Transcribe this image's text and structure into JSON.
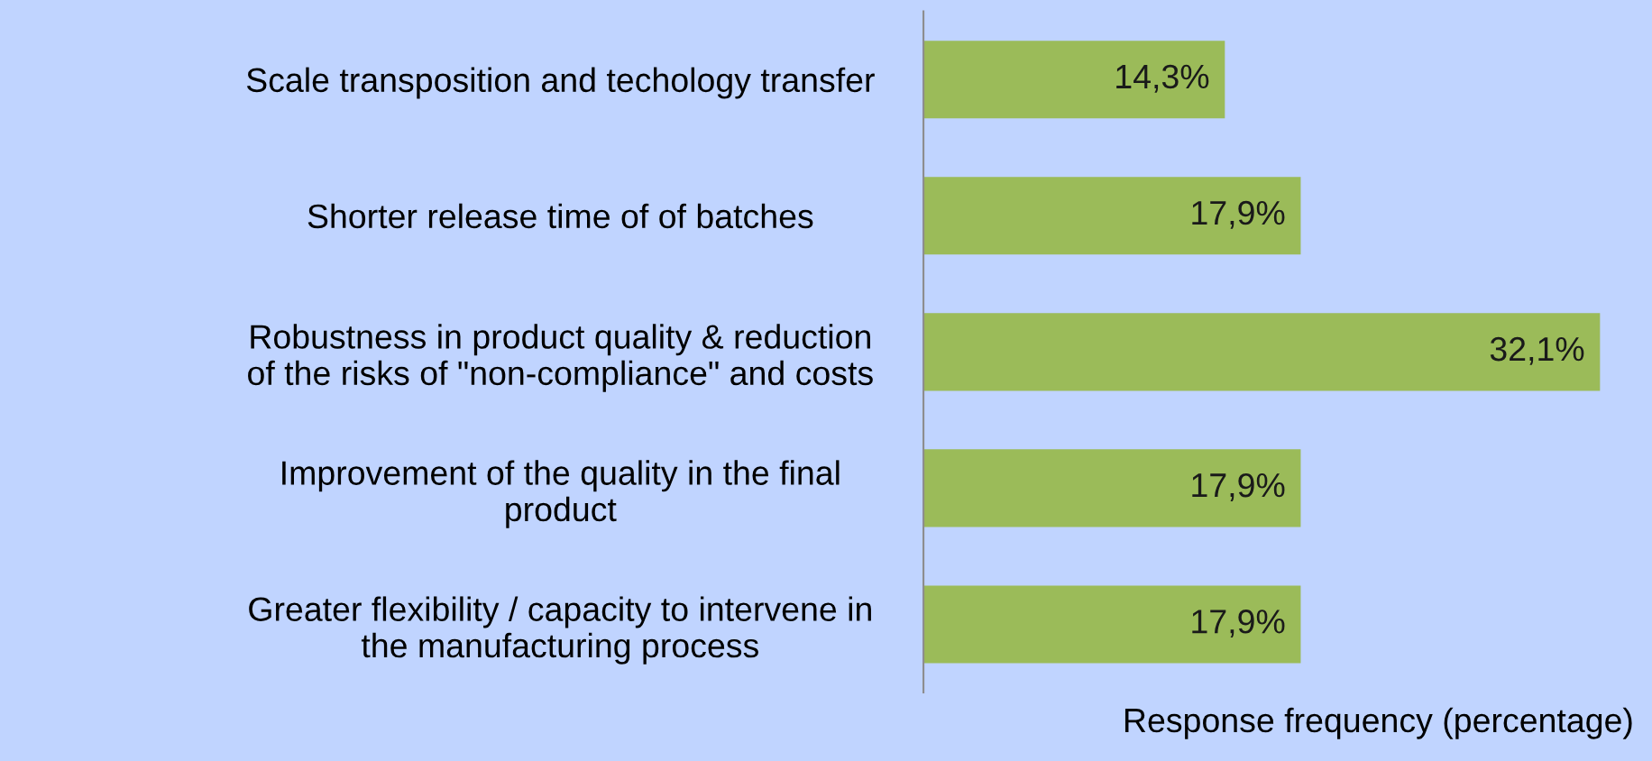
{
  "chart_data": {
    "type": "bar",
    "orientation": "horizontal",
    "xlabel": "Response frequency (percentage)",
    "categories": [
      "Scale transposition and techology transfer",
      "Shorter release time of of batches",
      "Robustness in product quality & reduction\nof the risks of \"non-compliance\" and costs",
      "Improvement of the quality in the final\nproduct",
      "Greater flexibility / capacity to intervene in\nthe manufacturing process"
    ],
    "values": [
      14.3,
      17.9,
      32.1,
      17.9,
      17.9
    ],
    "value_labels": [
      "14,3%",
      "17,9%",
      "32,1%",
      "17,9%",
      "17,9%"
    ],
    "color": "#9bbb59",
    "grid": false,
    "legend": false
  }
}
